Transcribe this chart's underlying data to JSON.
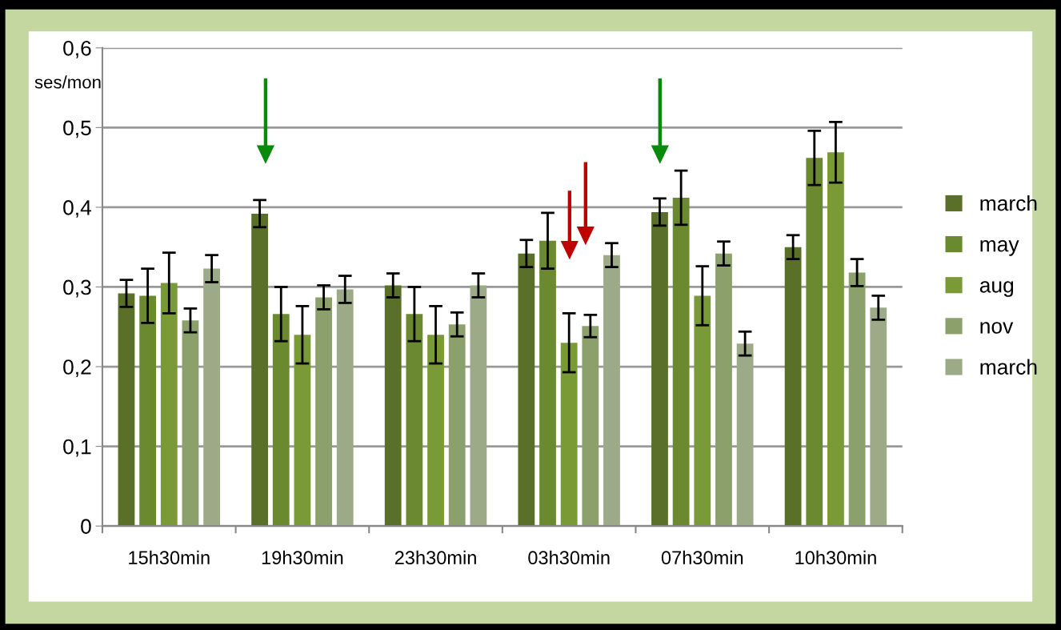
{
  "chart_data": {
    "type": "bar",
    "ylabel": "ses/mon",
    "categories": [
      "15h30min",
      "19h30min",
      "23h30min",
      "03h30min",
      "07h30min",
      "10h30min"
    ],
    "series": [
      {
        "name": "march",
        "color": "#5a7028",
        "values": [
          0.292,
          0.392,
          0.302,
          0.342,
          0.394,
          0.35
        ],
        "errors": [
          0.017,
          0.017,
          0.015,
          0.017,
          0.017,
          0.015
        ]
      },
      {
        "name": "may",
        "color": "#6b8a30",
        "values": [
          0.289,
          0.266,
          0.266,
          0.358,
          0.412,
          0.462
        ],
        "errors": [
          0.034,
          0.034,
          0.034,
          0.035,
          0.034,
          0.034
        ]
      },
      {
        "name": "aug",
        "color": "#7a9a38",
        "values": [
          0.305,
          0.24,
          0.24,
          0.23,
          0.289,
          0.469
        ],
        "errors": [
          0.038,
          0.036,
          0.036,
          0.037,
          0.037,
          0.038
        ]
      },
      {
        "name": "nov",
        "color": "#8ca06c",
        "values": [
          0.258,
          0.287,
          0.253,
          0.251,
          0.342,
          0.318
        ],
        "errors": [
          0.015,
          0.015,
          0.015,
          0.014,
          0.015,
          0.017
        ]
      },
      {
        "name": "march",
        "color": "#9caa88",
        "values": [
          0.323,
          0.297,
          0.302,
          0.34,
          0.229,
          0.274
        ],
        "errors": [
          0.017,
          0.017,
          0.015,
          0.015,
          0.015,
          0.015
        ]
      }
    ],
    "ylim": [
      0,
      0.6
    ],
    "yticks": [
      {
        "value": 0,
        "label": "0"
      },
      {
        "value": 0.1,
        "label": "0,1"
      },
      {
        "value": 0.2,
        "label": "0,2"
      },
      {
        "value": 0.3,
        "label": "0,3"
      },
      {
        "value": 0.4,
        "label": "0,4"
      },
      {
        "value": 0.5,
        "label": "0,5"
      },
      {
        "value": 0.6,
        "label": "0,6"
      }
    ],
    "grid": "y",
    "legend": "right"
  }
}
